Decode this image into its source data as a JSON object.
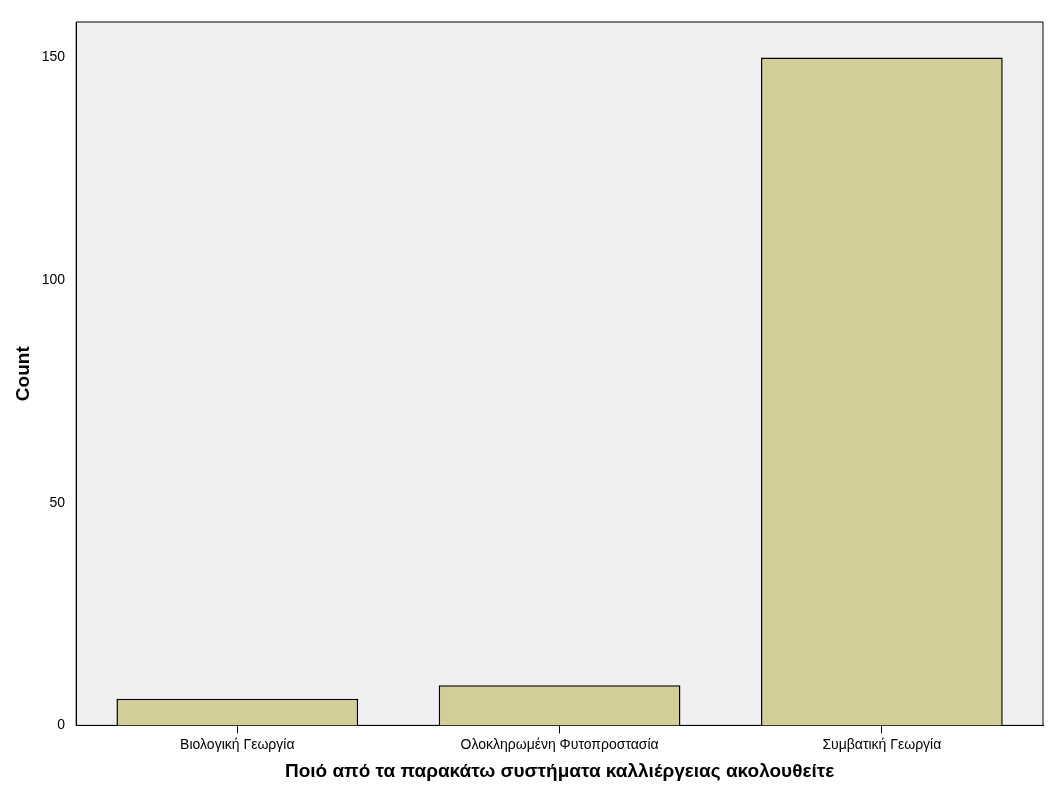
{
  "chart_data": {
    "type": "bar",
    "ylabel": "Count",
    "xlabel": "Ποιό από τα παρακάτω συστήματα καλλιέργειας ακολουθείτε",
    "categories": [
      "Βιολογική Γεωργία",
      "Ολοκληρωμένη Φυτοπροστασία",
      "Συμβατική Γεωργία"
    ],
    "values": [
      6,
      9,
      150
    ],
    "color": "#d3ce97",
    "ylim": [
      0,
      158
    ],
    "yticks": [
      0,
      50,
      100,
      150
    ],
    "grid": false,
    "legend": false
  }
}
